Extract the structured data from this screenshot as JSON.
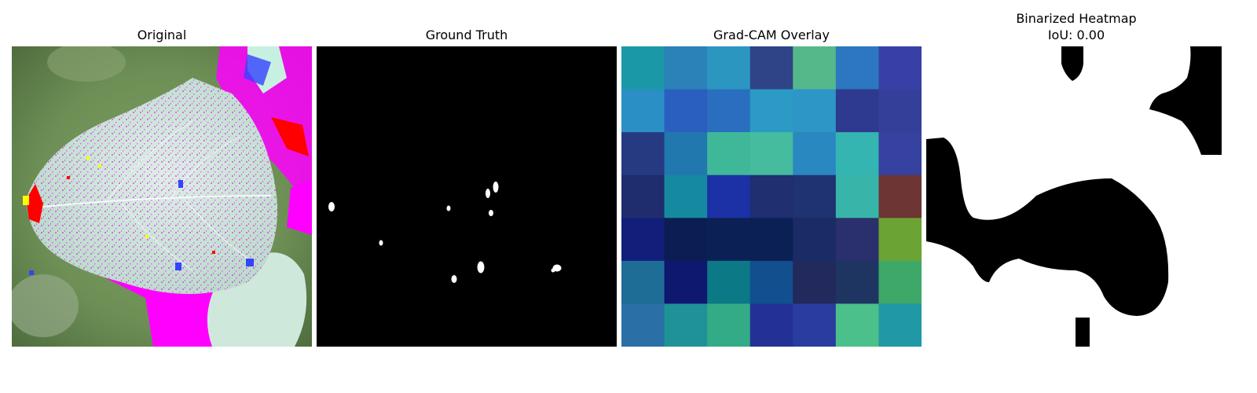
{
  "figure": {
    "panels": [
      {
        "id": "original",
        "title": "Original"
      },
      {
        "id": "ground-truth",
        "title": "Ground Truth"
      },
      {
        "id": "gradcam-overlay",
        "title": "Grad-CAM Overlay"
      },
      {
        "id": "binarized-heatmap",
        "title_line1": "Binarized Heatmap",
        "title_line2": "IoU: 0.00"
      }
    ]
  },
  "chart_data": [
    {
      "type": "image",
      "title": "Original",
      "content": "leaf photograph with false-colour pixel artifacts",
      "colors": {
        "leaf": "#cfe8dc",
        "background": "#6d8f55",
        "artifact_magenta": "#ff00ff",
        "artifact_red": "#ff0000",
        "artifact_yellow": "#ffff00",
        "artifact_blue": "#3344ff"
      }
    },
    {
      "type": "image",
      "title": "Ground Truth",
      "content": "binary mask with 10 small white blobs on black",
      "colors": {
        "background": "#000000",
        "foreground": "#ffffff"
      }
    },
    {
      "type": "heatmap",
      "title": "Grad-CAM Overlay",
      "rows": 7,
      "cols": 7,
      "cell_colors": [
        [
          "#1b98a8",
          "#2a82b8",
          "#2b97c0",
          "#2f4487",
          "#55b88b",
          "#2c77bf",
          "#3840a8"
        ],
        [
          "#2a8fc4",
          "#2b5fbf",
          "#2a6fbf",
          "#2b9ac4",
          "#2d96c6",
          "#2d3a8f",
          "#343f9a"
        ],
        [
          "#263a82",
          "#2178ae",
          "#3fb89a",
          "#45bc9d",
          "#2a88c0",
          "#35b5b2",
          "#3542a0"
        ],
        [
          "#1f2d6e",
          "#15899f",
          "#1b31a5",
          "#1f2f70",
          "#1f3272",
          "#38b4a8",
          "#6e3535"
        ],
        [
          "#121f7a",
          "#0b1d52",
          "#0b2156",
          "#0b2055",
          "#1a2b66",
          "#29306c",
          "#6ca335"
        ],
        [
          "#1e6d96",
          "#0f186f",
          "#0b7986",
          "#114f8f",
          "#22295c",
          "#1f3561",
          "#3da868"
        ],
        [
          "#2a6fa6",
          "#1f9298",
          "#33ab86",
          "#233196",
          "#2a3ca0",
          "#4cc08a",
          "#2198a5"
        ]
      ]
    },
    {
      "type": "image",
      "title": "Binarized Heatmap",
      "subtitle": "IoU: 0.00",
      "iou": 0.0,
      "colors": {
        "on": "#ffffff",
        "off": "#000000"
      }
    }
  ]
}
